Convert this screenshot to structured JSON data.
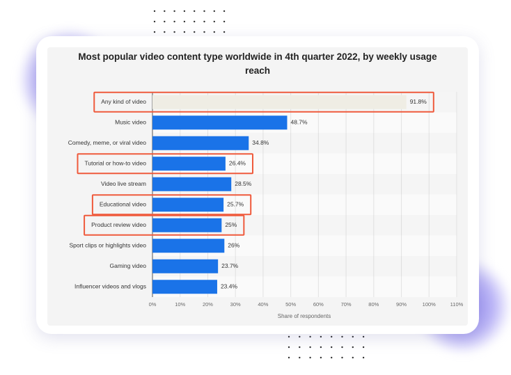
{
  "chart_data": {
    "type": "bar",
    "orientation": "horizontal",
    "title": "Most popular video content type worldwide in 4th quarter 2022, by weekly usage reach",
    "xlabel": "Share of respondents",
    "categories": [
      "Any kind of video",
      "Music video",
      "Comedy, meme, or viral video",
      "Tutorial or how-to video",
      "Video live stream",
      "Educational video",
      "Product review video",
      "Sport clips or highlights video",
      "Gaming video",
      "Influencer videos and vlogs"
    ],
    "values": [
      91.8,
      48.7,
      34.8,
      26.4,
      28.5,
      25.7,
      25,
      26,
      23.7,
      23.4
    ],
    "value_labels": [
      "91.8%",
      "48.7%",
      "34.8%",
      "26.4%",
      "28.5%",
      "25.7%",
      "25%",
      "26%",
      "23.7%",
      "23.4%"
    ],
    "colors": [
      "#efede4",
      "#1a73e8",
      "#1a73e8",
      "#1a73e8",
      "#1a73e8",
      "#1a73e8",
      "#1a73e8",
      "#1a73e8",
      "#1a73e8",
      "#1a73e8"
    ],
    "highlighted": [
      0,
      3,
      5,
      6
    ],
    "highlight_color": "#ef5a3c",
    "xlim": [
      0,
      110
    ],
    "xticks": [
      {
        "value": 0,
        "label": "0%"
      },
      {
        "value": 10,
        "label": "10%"
      },
      {
        "value": 20,
        "label": "20%"
      },
      {
        "value": 30,
        "label": "30%"
      },
      {
        "value": 40,
        "label": "40%"
      },
      {
        "value": 50,
        "label": "50%"
      },
      {
        "value": 60,
        "label": "60%"
      },
      {
        "value": 70,
        "label": "70%"
      },
      {
        "value": 80,
        "label": "80%"
      },
      {
        "value": 90,
        "label": "90%"
      },
      {
        "value": 100,
        "label": "100%"
      },
      {
        "value": 110,
        "label": "110%"
      }
    ],
    "grid": true
  }
}
